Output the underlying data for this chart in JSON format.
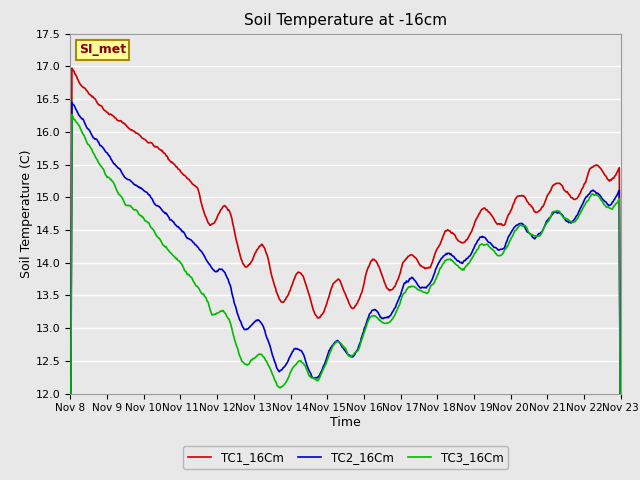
{
  "title": "Soil Temperature at -16cm",
  "xlabel": "Time",
  "ylabel": "Soil Temperature (C)",
  "ylim": [
    12.0,
    17.5
  ],
  "yticks": [
    12.0,
    12.5,
    13.0,
    13.5,
    14.0,
    14.5,
    15.0,
    15.5,
    16.0,
    16.5,
    17.0,
    17.5
  ],
  "xtick_labels": [
    "Nov 8",
    "Nov 9",
    "Nov 10",
    "Nov 11",
    "Nov 12",
    "Nov 13",
    "Nov 14",
    "Nov 15",
    "Nov 16",
    "Nov 17",
    "Nov 18",
    "Nov 19",
    "Nov 20",
    "Nov 21",
    "Nov 22",
    "Nov 23"
  ],
  "legend_labels": [
    "TC1_16Cm",
    "TC2_16Cm",
    "TC3_16Cm"
  ],
  "line_colors": [
    "#cc0000",
    "#0000cc",
    "#00bb00"
  ],
  "line_width": 1.2,
  "bg_color": "#e8e8e8",
  "plot_bg_color": "#e8e8e8",
  "grid_color": "#ffffff",
  "annotation_text": "SI_met",
  "annotation_bg": "#ffff99",
  "annotation_border": "#aa8800"
}
